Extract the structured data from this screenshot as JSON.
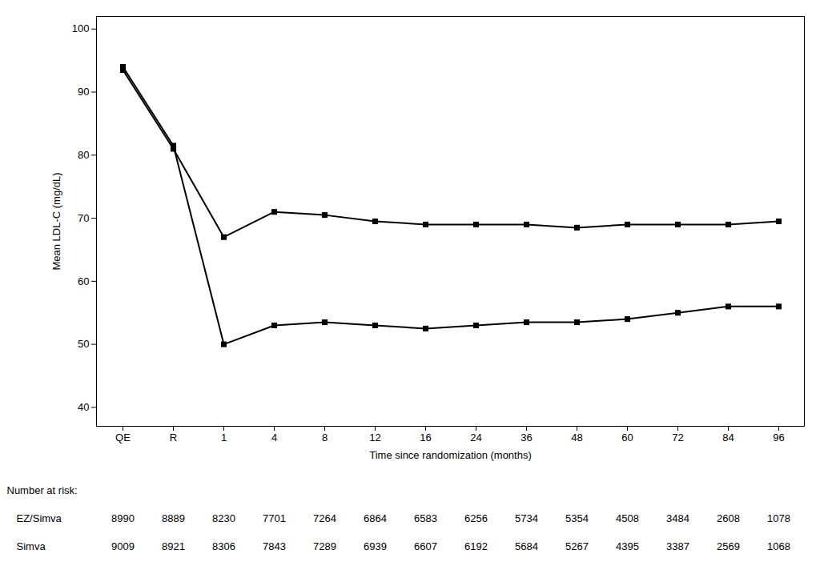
{
  "chart_data": {
    "type": "line",
    "xlabel": "Time since randomization (months)",
    "ylabel": "Mean LDL-C (mg/dL)",
    "categories": [
      "QE",
      "R",
      "1",
      "4",
      "8",
      "12",
      "16",
      "24",
      "36",
      "48",
      "60",
      "72",
      "84",
      "96"
    ],
    "ylim": [
      37,
      102
    ],
    "yticks": [
      40,
      50,
      60,
      70,
      80,
      90,
      100
    ],
    "grid": false,
    "marker": "square",
    "risk_label": "Number at risk:",
    "series": [
      {
        "name": "Simva",
        "values": [
          93.5,
          81.0,
          67.0,
          71.0,
          70.5,
          69.5,
          69.0,
          69.0,
          69.0,
          68.5,
          69.0,
          69.0,
          69.0,
          69.5
        ],
        "risk": [
          9009,
          8921,
          8306,
          7843,
          7289,
          6939,
          6607,
          6192,
          5684,
          5267,
          4395,
          3387,
          2569,
          1068
        ]
      },
      {
        "name": "EZ/Simva",
        "values": [
          94.0,
          81.5,
          50.0,
          53.0,
          53.5,
          53.0,
          52.5,
          53.0,
          53.5,
          53.5,
          54.0,
          55.0,
          56.0,
          56.0
        ],
        "risk": [
          8990,
          8889,
          8230,
          7701,
          7264,
          6864,
          6583,
          6256,
          5734,
          5354,
          4508,
          3484,
          2608,
          1078
        ]
      }
    ]
  }
}
